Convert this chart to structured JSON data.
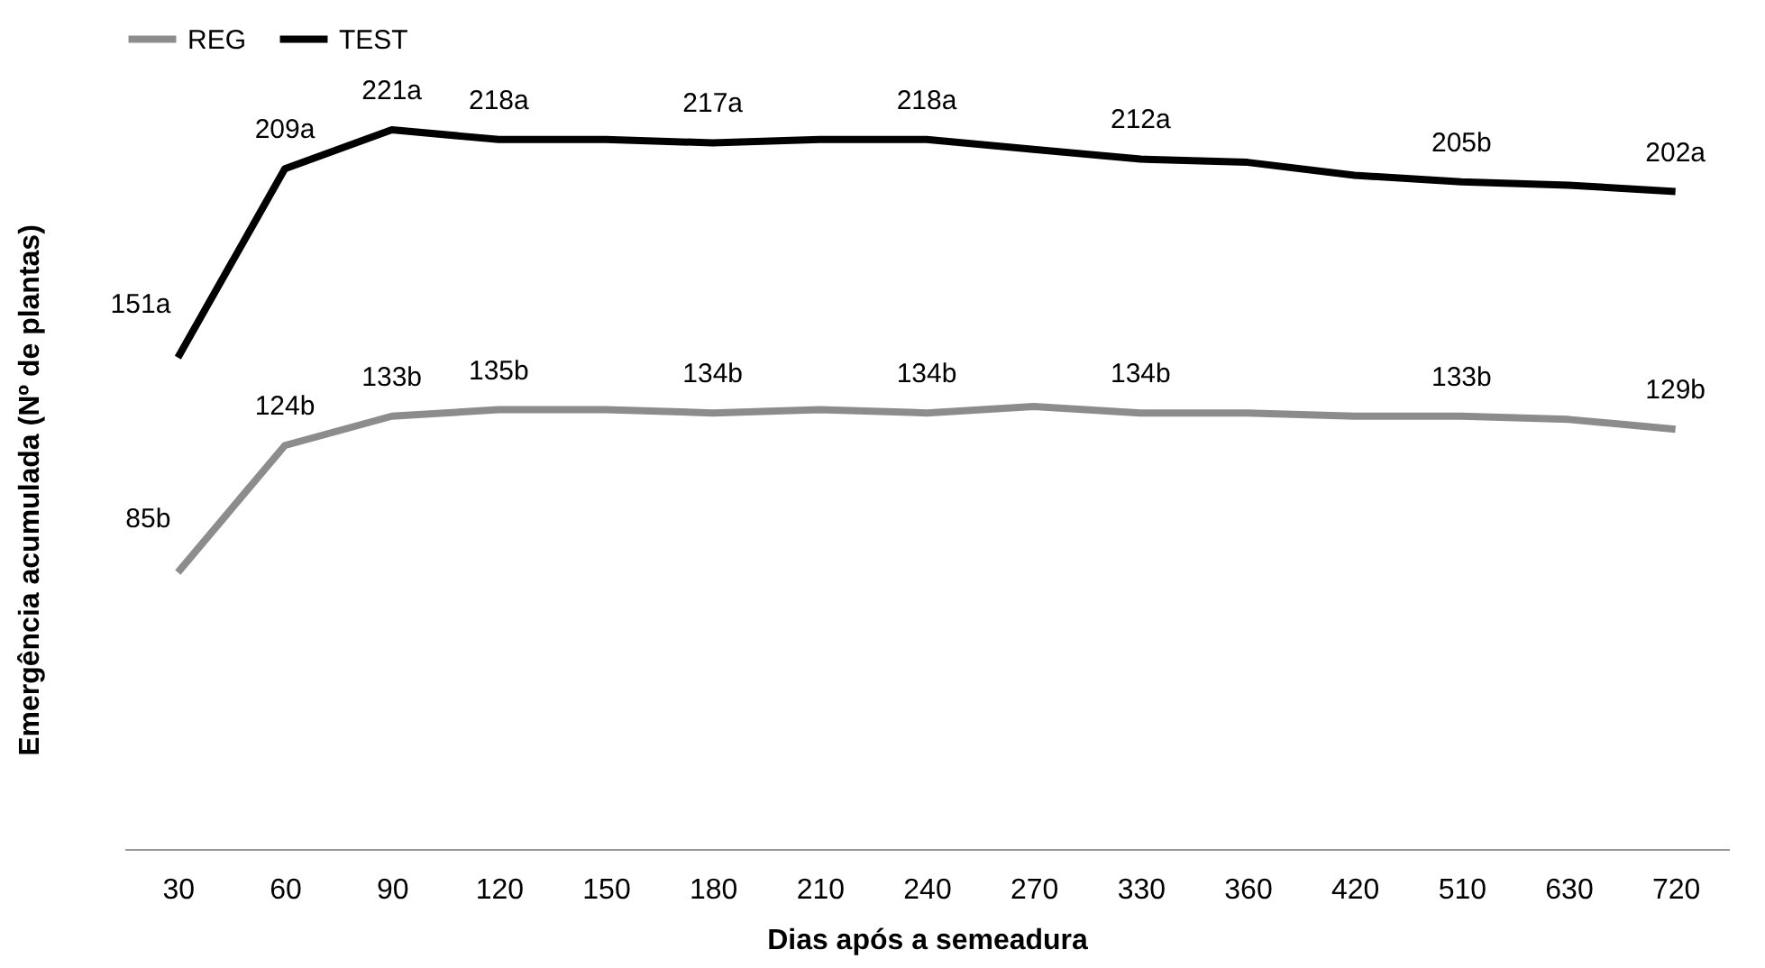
{
  "chart_data": {
    "type": "line",
    "xlabel": "Dias após a semeadura",
    "ylabel": "Emergência  acumulada (Nº de plantas)",
    "categories": [
      "30",
      "60",
      "90",
      "120",
      "150",
      "180",
      "210",
      "240",
      "270",
      "330",
      "360",
      "420",
      "510",
      "630",
      "720"
    ],
    "tick_labels": "x",
    "legend": "top",
    "grid": false,
    "marker": "none",
    "line_style": "solid",
    "series": [
      {
        "name": "REG",
        "color": "#8c8c8c",
        "values": [
          85,
          124,
          133,
          135,
          135,
          134,
          135,
          134,
          136,
          134,
          134,
          133,
          133,
          132,
          129
        ],
        "value_labels": [
          "85b",
          "124b",
          "133b",
          "135b",
          null,
          "134b",
          null,
          "134b",
          null,
          "134b",
          null,
          null,
          "133b",
          null,
          "129b"
        ]
      },
      {
        "name": "TEST",
        "color": "#000000",
        "values": [
          151,
          209,
          221,
          218,
          218,
          217,
          218,
          218,
          215,
          212,
          211,
          207,
          205,
          204,
          202
        ],
        "value_labels": [
          "151a",
          "209a",
          "221a",
          "218a",
          null,
          "217a",
          null,
          "218a",
          null,
          "212a",
          null,
          null,
          "205b",
          null,
          "202a"
        ]
      }
    ]
  }
}
